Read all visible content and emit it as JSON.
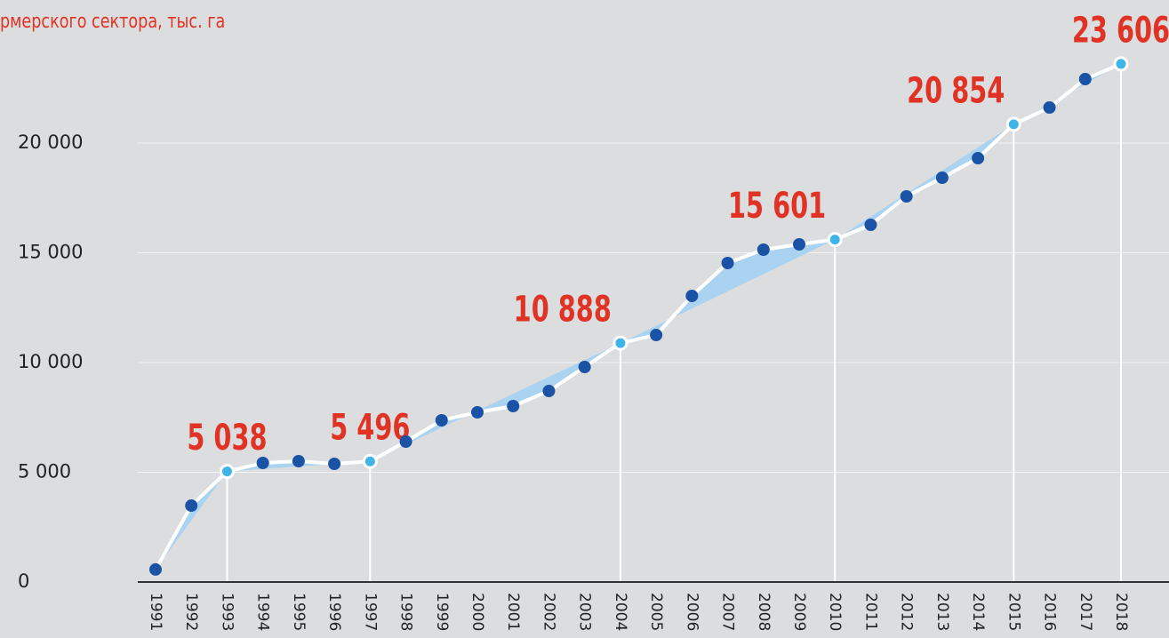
{
  "chart_data": {
    "type": "line",
    "subtitle": "рмерского сектора, тыс. га",
    "categories": [
      "1991",
      "1992",
      "1993",
      "1994",
      "1995",
      "1996",
      "1997",
      "1998",
      "1999",
      "2000",
      "2001",
      "2002",
      "2003",
      "2004",
      "2005",
      "2006",
      "2007",
      "2008",
      "2009",
      "2010",
      "2011",
      "2012",
      "2013",
      "2014",
      "2015",
      "2016",
      "2017",
      "2018"
    ],
    "series": [
      {
        "name": null,
        "color": "#1a52a5",
        "values": [
          570,
          3480,
          5038,
          5425,
          5506,
          5385,
          5496,
          6397,
          7368,
          7733,
          8016,
          8704,
          9798,
          10888,
          11255,
          13036,
          14534,
          15142,
          15385,
          15601,
          16275,
          17571,
          18421,
          19312,
          20854,
          21619,
          22915,
          23606
        ],
        "value_labels": [
          null,
          null,
          "5 038",
          null,
          null,
          null,
          "5 496",
          null,
          null,
          null,
          null,
          null,
          null,
          "10 888",
          null,
          null,
          null,
          null,
          null,
          "15 601",
          null,
          null,
          null,
          null,
          "20 854",
          null,
          null,
          "23 606"
        ]
      }
    ],
    "ylim": [
      0,
      24000
    ],
    "yticks": [
      0,
      {
        "value": 5000,
        "label": "5 000"
      },
      {
        "value": 10000,
        "label": "10 000"
      },
      {
        "value": 15000,
        "label": "15 000"
      },
      {
        "value": 20000,
        "label": "20 000"
      }
    ],
    "grid": true
  }
}
